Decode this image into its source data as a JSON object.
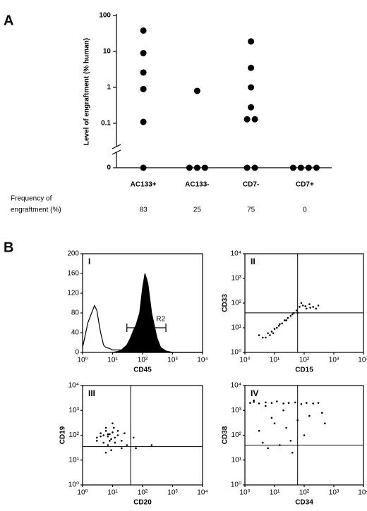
{
  "chart_data": [
    {
      "type": "dot",
      "panel": "A",
      "ylabel": "Level of engraftment (% human)",
      "categories": [
        "AC133+",
        "AC133-",
        "CD7-",
        "CD7+"
      ],
      "values": [
        [
          38,
          9,
          2.6,
          0.9,
          0.11,
          0
        ],
        [
          0.8,
          0,
          0,
          0
        ],
        [
          19,
          3.5,
          1.0,
          0.28,
          0.13,
          0.13,
          0,
          0
        ],
        [
          0,
          0,
          0,
          0
        ]
      ],
      "ylim": [
        0,
        100
      ],
      "yticks": [
        0,
        0.1,
        1,
        10,
        100
      ],
      "log_y": true,
      "axis_break": true,
      "color": "#000000",
      "row_label": [
        "Frequency of",
        "engraftment (%)"
      ],
      "row_values": [
        83,
        25,
        75,
        0
      ]
    },
    {
      "type": "histogram-line",
      "figure_label": "B",
      "panel": "I",
      "xlabel": "CD45",
      "log_x": true,
      "xlim": [
        1,
        10000
      ],
      "xticks": [
        {
          "value": 1,
          "label": "10⁰"
        },
        {
          "value": 10,
          "label": "10¹"
        },
        {
          "value": 100,
          "label": "10²"
        },
        {
          "value": 1000,
          "label": "10³"
        },
        {
          "value": 10000,
          "label": "10⁴"
        }
      ],
      "ylim": [
        0,
        200
      ],
      "yticks": [
        0,
        40,
        80,
        120,
        160,
        200
      ],
      "series": [
        {
          "name": null,
          "filled": false,
          "color": "#000000",
          "x": [
            1,
            1.5,
            2,
            2.5,
            3,
            3.5,
            4,
            5,
            6,
            8,
            10,
            15,
            20,
            30,
            50,
            100,
            1000,
            10000
          ],
          "values": [
            10,
            60,
            80,
            95,
            85,
            60,
            40,
            15,
            10,
            8,
            5,
            5,
            5,
            8,
            5,
            3,
            0,
            0
          ]
        },
        {
          "name": null,
          "filled": true,
          "color": "#000000",
          "x": [
            10,
            15,
            20,
            30,
            40,
            50,
            60,
            80,
            100,
            120,
            150,
            200,
            300,
            400,
            600,
            1000
          ],
          "values": [
            0,
            2,
            5,
            15,
            30,
            45,
            55,
            80,
            130,
            160,
            140,
            80,
            30,
            10,
            3,
            0
          ]
        }
      ],
      "gate": {
        "label": "R2",
        "x": [
          30,
          600
        ],
        "y": 50
      }
    },
    {
      "type": "scatter",
      "panel": "II",
      "xlabel": "CD15",
      "ylabel": "CD33",
      "log_x": true,
      "log_y": true,
      "xlim": [
        1,
        10000
      ],
      "ylim": [
        1,
        10000
      ],
      "xticks": [
        {
          "value": 1,
          "label": "10⁰"
        },
        {
          "value": 10,
          "label": "10¹"
        },
        {
          "value": 100,
          "label": "10²"
        },
        {
          "value": 1000,
          "label": "10³"
        },
        {
          "value": 10000,
          "label": "10⁴"
        }
      ],
      "yticks": [
        {
          "value": 1,
          "label": "10⁰"
        },
        {
          "value": 10,
          "label": "10¹"
        },
        {
          "value": 100,
          "label": "10²"
        },
        {
          "value": 1000,
          "label": "10³"
        },
        {
          "value": 10000,
          "label": "10⁴"
        }
      ],
      "gates": {
        "x": 60,
        "y": 40
      },
      "color": "#000000",
      "x": [
        4,
        5,
        6,
        7,
        8,
        10,
        12,
        15,
        18,
        22,
        28,
        35,
        45,
        55,
        70,
        90,
        120,
        150,
        200,
        250,
        300,
        80,
        110,
        160,
        60,
        9,
        14,
        25,
        40,
        3
      ],
      "values": [
        4,
        4,
        6,
        5,
        7,
        9,
        10,
        14,
        15,
        20,
        25,
        30,
        40,
        50,
        70,
        80,
        60,
        90,
        70,
        60,
        80,
        100,
        75,
        65,
        40,
        6,
        12,
        20,
        35,
        5
      ]
    },
    {
      "type": "scatter",
      "panel": "III",
      "xlabel": "CD20",
      "ylabel": "CD19",
      "log_x": true,
      "log_y": true,
      "xlim": [
        1,
        10000
      ],
      "ylim": [
        1,
        10000
      ],
      "xticks": [
        {
          "value": 1,
          "label": "10⁰"
        },
        {
          "value": 10,
          "label": "10¹"
        },
        {
          "value": 100,
          "label": "10²"
        },
        {
          "value": 1000,
          "label": "10³"
        },
        {
          "value": 10000,
          "label": "10⁴"
        }
      ],
      "yticks": [
        {
          "value": 1,
          "label": "10⁰"
        },
        {
          "value": 10,
          "label": "10¹"
        },
        {
          "value": 100,
          "label": "10²"
        },
        {
          "value": 1000,
          "label": "10³"
        },
        {
          "value": 10000,
          "label": "10⁴"
        }
      ],
      "gates": {
        "x": 40,
        "y": 35
      },
      "color": "#000000",
      "x": [
        3,
        4,
        5,
        6,
        7,
        8,
        9,
        10,
        12,
        15,
        20,
        5,
        7,
        6,
        10,
        30,
        60,
        8,
        4,
        12,
        25,
        9,
        6,
        15,
        50,
        200,
        3,
        11,
        7,
        20
      ],
      "values": [
        80,
        120,
        100,
        150,
        90,
        110,
        70,
        130,
        80,
        100,
        60,
        50,
        40,
        200,
        300,
        40,
        30,
        60,
        90,
        50,
        120,
        25,
        20,
        150,
        80,
        40,
        60,
        200,
        110,
        30
      ]
    },
    {
      "type": "scatter",
      "panel": "IV",
      "xlabel": "CD34",
      "ylabel": "CD38",
      "log_x": true,
      "log_y": true,
      "xlim": [
        1,
        10000
      ],
      "ylim": [
        1,
        10000
      ],
      "xticks": [
        {
          "value": 1,
          "label": "10⁰"
        },
        {
          "value": 10,
          "label": "10¹"
        },
        {
          "value": 100,
          "label": "10²"
        },
        {
          "value": 1000,
          "label": "10³"
        },
        {
          "value": 10000,
          "label": "10⁴"
        }
      ],
      "yticks": [
        {
          "value": 1,
          "label": "10⁰"
        },
        {
          "value": 10,
          "label": "10¹"
        },
        {
          "value": 100,
          "label": "10²"
        },
        {
          "value": 1000,
          "label": "10³"
        },
        {
          "value": 10000,
          "label": "10⁴"
        }
      ],
      "gates": {
        "x": 60,
        "y": 40
      },
      "color": "#000000",
      "x": [
        1.5,
        2,
        3,
        5,
        8,
        12,
        20,
        30,
        50,
        80,
        120,
        200,
        300,
        10,
        25,
        60,
        150,
        400,
        4,
        6,
        15,
        40,
        100,
        3,
        8,
        20,
        2,
        5,
        35,
        500
      ],
      "values": [
        2000,
        2200,
        1900,
        2100,
        2000,
        2300,
        1900,
        2000,
        2100,
        1800,
        2000,
        1900,
        2000,
        300,
        200,
        400,
        600,
        800,
        50,
        30,
        40,
        20,
        100,
        150,
        500,
        1000,
        2500,
        1500,
        60,
        300
      ]
    }
  ]
}
